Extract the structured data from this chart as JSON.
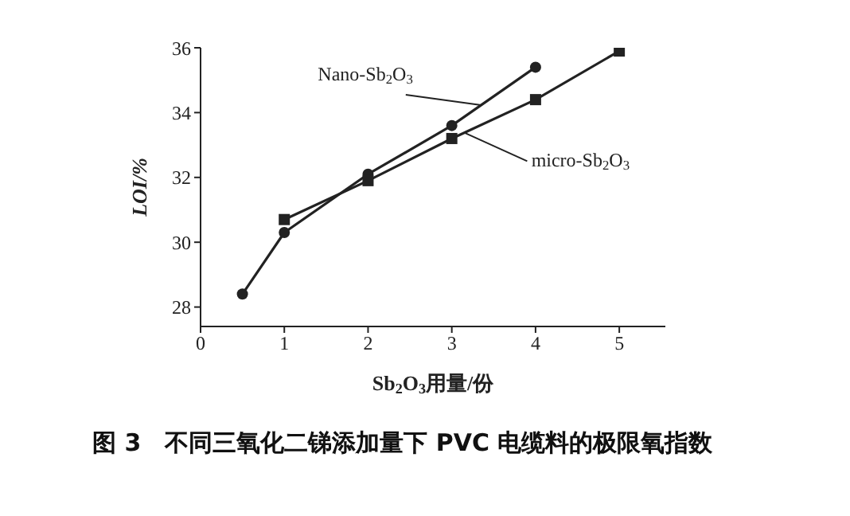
{
  "chart_data": {
    "type": "line",
    "title": "图 3　不同三氧化二锑添加量下 PVC 电缆料的极限氧指数",
    "xlabel": "Sb$_{2}$O$_{3}$用量/份",
    "ylabel": "LOI/%",
    "xlim": [
      0,
      5.55
    ],
    "xticks": [
      0,
      1,
      2,
      3,
      4,
      5
    ],
    "ylim": [
      27.4,
      36
    ],
    "yticks": [
      28,
      30,
      32,
      34,
      36
    ],
    "grid": false,
    "line_style": "solid",
    "series": [
      {
        "name": "Nano-Sb$_{2}$O$_{3}$",
        "color": "#222222",
        "marker": "circle",
        "x": [
          0.5,
          1,
          2,
          3,
          4
        ],
        "values": [
          28.4,
          30.3,
          32.1,
          33.6,
          35.4
        ]
      },
      {
        "name": "micro-Sb$_{2}$O$_{3}$",
        "color": "#222222",
        "marker": "square",
        "x": [
          1,
          2,
          3,
          4,
          5
        ],
        "values": [
          30.7,
          31.9,
          33.2,
          34.4,
          35.9
        ]
      }
    ]
  }
}
